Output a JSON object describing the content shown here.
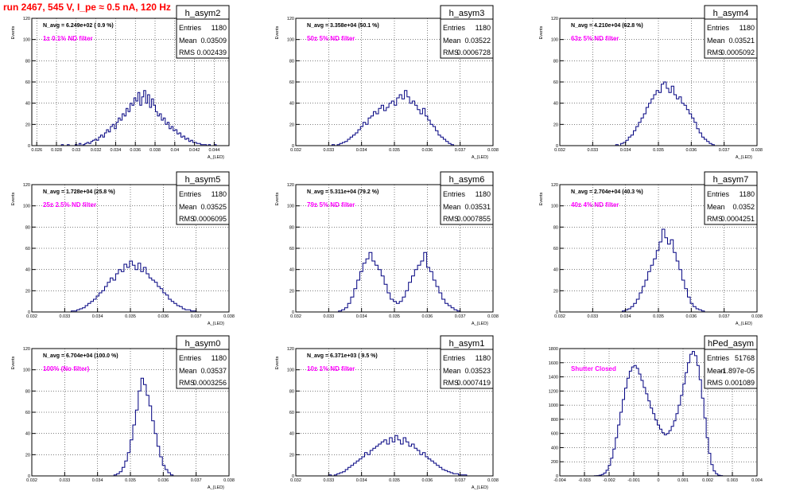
{
  "page_title": "run 2467,   545 V, I_pe ≈ 0.5 nA, 120 Hz",
  "stats_labels": {
    "entries": "Entries",
    "mean": "Mean",
    "rms": "RMS"
  },
  "colors": {
    "title": "#ff0000",
    "annotation": "#ff00ff",
    "histogram": "#000080",
    "frame": "#000000",
    "grid": "#000000",
    "background": "#ffffff"
  },
  "chart_data": [
    {
      "type": "histogram",
      "name": "h_asym2",
      "n_avg_text": "N_avg = 6.249e+02 ( 0.9 %)",
      "annotation": "1± 0.1% ND filter",
      "entries": "1180",
      "mean": "0.03509",
      "rms": "0.002439",
      "xlabel": "A_{LED}",
      "ylabel": "Events",
      "xlim": [
        0.0255,
        0.0455
      ],
      "ylim": [
        0,
        120
      ],
      "x_ticks": [
        0.026,
        0.028,
        0.03,
        0.032,
        0.034,
        0.036,
        0.038,
        0.04,
        0.042,
        0.044
      ],
      "x_tick_labels": [
        "0.026",
        "0.028",
        "0.03",
        "0.032",
        "0.034",
        "0.036",
        "0.038",
        "0.04",
        "0.042",
        "0.044"
      ],
      "y_ticks": [
        0,
        20,
        40,
        60,
        80,
        100,
        120
      ],
      "bin_edges": [
        0.0285,
        0.0442
      ],
      "counts": [
        1,
        0,
        0,
        1,
        0,
        0,
        0,
        1,
        0,
        2,
        0,
        1,
        2,
        3,
        2,
        4,
        5,
        6,
        5,
        8,
        10,
        8,
        12,
        15,
        13,
        18,
        20,
        16,
        22,
        26,
        24,
        30,
        28,
        35,
        32,
        40,
        38,
        45,
        42,
        50,
        38,
        46,
        52,
        40,
        48,
        36,
        44,
        38,
        32,
        28,
        30,
        24,
        26,
        20,
        22,
        16,
        18,
        14,
        15,
        11,
        12,
        8,
        9,
        6,
        7,
        4,
        5,
        3,
        3,
        2,
        2,
        1,
        1,
        1,
        0,
        1,
        0,
        0,
        1
      ]
    },
    {
      "type": "histogram",
      "name": "h_asym3",
      "n_avg_text": "N_avg = 3.358e+04 (50.1 %)",
      "annotation": "50± 5% ND filter",
      "entries": "1180",
      "mean": "0.03522",
      "rms": "0.0006728",
      "xlabel": "A_{LED}",
      "ylabel": "Events",
      "xlim": [
        0.032,
        0.038
      ],
      "ylim": [
        0,
        120
      ],
      "x_ticks": [
        0.032,
        0.033,
        0.034,
        0.035,
        0.036,
        0.037,
        0.038
      ],
      "x_tick_labels": [
        "0.032",
        "0.033",
        "0.034",
        "0.035",
        "0.036",
        "0.037",
        "0.038"
      ],
      "y_ticks": [
        0,
        20,
        40,
        60,
        80,
        100,
        120
      ],
      "bin_edges": [
        0.0331,
        0.0368
      ],
      "counts": [
        1,
        0,
        1,
        2,
        3,
        4,
        6,
        8,
        10,
        12,
        15,
        18,
        22,
        20,
        26,
        28,
        32,
        30,
        35,
        38,
        33,
        36,
        40,
        42,
        38,
        45,
        48,
        44,
        52,
        46,
        40,
        42,
        38,
        34,
        30,
        35,
        28,
        24,
        20,
        18,
        14,
        10,
        8,
        6,
        4,
        2,
        1
      ]
    },
    {
      "type": "histogram",
      "name": "h_asym4",
      "n_avg_text": "N_avg = 4.210e+04 (62.8 %)",
      "annotation": "63± 5% ND filter",
      "entries": "1180",
      "mean": "0.03521",
      "rms": "0.0005092",
      "xlabel": "A_{LED}",
      "ylabel": "Events",
      "xlim": [
        0.032,
        0.038
      ],
      "ylim": [
        0,
        120
      ],
      "x_ticks": [
        0.032,
        0.033,
        0.034,
        0.035,
        0.036,
        0.037,
        0.038
      ],
      "x_tick_labels": [
        "0.032",
        "0.033",
        "0.034",
        "0.035",
        "0.036",
        "0.037",
        "0.038"
      ],
      "y_ticks": [
        0,
        20,
        40,
        60,
        80,
        100,
        120
      ],
      "bin_edges": [
        0.0337,
        0.0367
      ],
      "counts": [
        1,
        0,
        2,
        3,
        5,
        8,
        10,
        14,
        18,
        22,
        26,
        30,
        36,
        40,
        44,
        48,
        52,
        50,
        58,
        60,
        54,
        50,
        56,
        48,
        44,
        46,
        40,
        38,
        34,
        30,
        26,
        22,
        16,
        12,
        8,
        6,
        4,
        2,
        1
      ]
    },
    {
      "type": "histogram",
      "name": "h_asym5",
      "n_avg_text": "N_avg = 1.728e+04 (25.8 %)",
      "annotation": "25± 2.5% ND filter",
      "entries": "1180",
      "mean": "0.03525",
      "rms": "0.0006095",
      "xlabel": "A_{LED}",
      "ylabel": "Events",
      "xlim": [
        0.032,
        0.038
      ],
      "ylim": [
        0,
        120
      ],
      "x_ticks": [
        0.032,
        0.033,
        0.034,
        0.035,
        0.036,
        0.037,
        0.038
      ],
      "x_tick_labels": [
        "0.032",
        "0.033",
        "0.034",
        "0.035",
        "0.036",
        "0.037",
        "0.038"
      ],
      "y_ticks": [
        0,
        20,
        40,
        60,
        80,
        100,
        120
      ],
      "bin_edges": [
        0.0332,
        0.037
      ],
      "counts": [
        1,
        1,
        2,
        3,
        4,
        6,
        8,
        10,
        12,
        15,
        18,
        20,
        24,
        28,
        32,
        30,
        36,
        40,
        38,
        45,
        42,
        48,
        44,
        40,
        46,
        38,
        42,
        36,
        32,
        30,
        28,
        24,
        22,
        18,
        16,
        12,
        10,
        8,
        6,
        5,
        3,
        2,
        2,
        1,
        1
      ]
    },
    {
      "type": "histogram",
      "name": "h_asym6",
      "n_avg_text": "N_avg = 5.311e+04 (79.2 %)",
      "annotation": "79± 5% ND filter",
      "entries": "1180",
      "mean": "0.03531",
      "rms": "0.0007855",
      "xlabel": "A_{LED}",
      "ylabel": "Events",
      "xlim": [
        0.032,
        0.038
      ],
      "ylim": [
        0,
        120
      ],
      "x_ticks": [
        0.032,
        0.033,
        0.034,
        0.035,
        0.036,
        0.037,
        0.038
      ],
      "x_tick_labels": [
        "0.032",
        "0.033",
        "0.034",
        "0.035",
        "0.036",
        "0.037",
        "0.038"
      ],
      "y_ticks": [
        0,
        20,
        40,
        60,
        80,
        100,
        120
      ],
      "bin_edges": [
        0.0333,
        0.037
      ],
      "counts": [
        1,
        2,
        4,
        8,
        14,
        22,
        30,
        38,
        46,
        50,
        56,
        48,
        44,
        40,
        34,
        26,
        18,
        12,
        10,
        8,
        10,
        14,
        20,
        28,
        34,
        40,
        44,
        48,
        56,
        42,
        38,
        30,
        24,
        18,
        12,
        8,
        6,
        4,
        2,
        1
      ]
    },
    {
      "type": "histogram",
      "name": "h_asym7",
      "n_avg_text": "N_avg = 2.704e+04 (40.3 %)",
      "annotation": "40± 4% ND filter",
      "entries": "1180",
      "mean": "0.0352",
      "rms": "0.0004251",
      "xlabel": "A_{LED}",
      "ylabel": "Events",
      "xlim": [
        0.032,
        0.038
      ],
      "ylim": [
        0,
        120
      ],
      "x_ticks": [
        0.032,
        0.033,
        0.034,
        0.035,
        0.036,
        0.037,
        0.038
      ],
      "x_tick_labels": [
        "0.032",
        "0.033",
        "0.034",
        "0.035",
        "0.036",
        "0.037",
        "0.038"
      ],
      "y_ticks": [
        0,
        20,
        40,
        60,
        80,
        100,
        120
      ],
      "bin_edges": [
        0.0339,
        0.0364
      ],
      "counts": [
        1,
        2,
        3,
        5,
        8,
        12,
        18,
        24,
        30,
        38,
        44,
        50,
        58,
        66,
        78,
        70,
        64,
        68,
        56,
        48,
        40,
        30,
        22,
        14,
        8,
        5,
        3,
        2,
        1
      ]
    },
    {
      "type": "histogram",
      "name": "h_asym0",
      "n_avg_text": "N_avg = 6.704e+04 (100.0 %)",
      "annotation": "100% (No filter)",
      "entries": "1180",
      "mean": "0.03537",
      "rms": "0.0003256",
      "xlabel": "A_{LED}",
      "ylabel": "Events",
      "xlim": [
        0.032,
        0.038
      ],
      "ylim": [
        0,
        120
      ],
      "x_ticks": [
        0.032,
        0.033,
        0.034,
        0.035,
        0.036,
        0.037,
        0.038
      ],
      "x_tick_labels": [
        "0.032",
        "0.033",
        "0.034",
        "0.035",
        "0.036",
        "0.037",
        "0.038"
      ],
      "y_ticks": [
        0,
        20,
        40,
        60,
        80,
        100,
        120
      ],
      "bin_edges": [
        0.0345,
        0.0363
      ],
      "counts": [
        1,
        2,
        4,
        8,
        14,
        22,
        34,
        48,
        62,
        80,
        92,
        86,
        76,
        66,
        52,
        40,
        28,
        18,
        10,
        6,
        3,
        1
      ]
    },
    {
      "type": "histogram",
      "name": "h_asym1",
      "n_avg_text": "N_avg = 6.371e+03 ( 9.5 %)",
      "annotation": "10± 1% ND filter",
      "entries": "1180",
      "mean": "0.03523",
      "rms": "0.0007419",
      "xlabel": "A_{LED}",
      "ylabel": "Events",
      "xlim": [
        0.032,
        0.038
      ],
      "ylim": [
        0,
        120
      ],
      "x_ticks": [
        0.032,
        0.033,
        0.034,
        0.035,
        0.036,
        0.037,
        0.038
      ],
      "x_tick_labels": [
        "0.032",
        "0.033",
        "0.034",
        "0.035",
        "0.036",
        "0.037",
        "0.038"
      ],
      "y_ticks": [
        0,
        20,
        40,
        60,
        80,
        100,
        120
      ],
      "bin_edges": [
        0.033,
        0.0372
      ],
      "counts": [
        1,
        0,
        1,
        2,
        3,
        4,
        6,
        8,
        10,
        12,
        14,
        16,
        18,
        22,
        20,
        24,
        26,
        28,
        30,
        32,
        34,
        30,
        36,
        32,
        38,
        34,
        30,
        36,
        32,
        28,
        30,
        26,
        24,
        20,
        22,
        18,
        16,
        14,
        12,
        10,
        8,
        6,
        5,
        4,
        3,
        2,
        2,
        1,
        1,
        1
      ]
    },
    {
      "type": "histogram",
      "name": "hPed_asym",
      "n_avg_text": "",
      "annotation": "Shutter Closed",
      "entries": "51768",
      "mean": "-1.897e-05",
      "rms": "0.001089",
      "xlabel": "",
      "ylabel": "",
      "xlim": [
        -0.004,
        0.004
      ],
      "ylim": [
        0,
        1800
      ],
      "x_ticks": [
        -0.004,
        -0.003,
        -0.002,
        -0.001,
        0,
        0.001,
        0.002,
        0.003,
        0.004
      ],
      "x_tick_labels": [
        "-0.004",
        "-0.003",
        "-0.002",
        "-0.001",
        "0",
        "0.001",
        "0.002",
        "0.003",
        "0.004"
      ],
      "y_ticks": [
        0,
        200,
        400,
        600,
        800,
        1000,
        1200,
        1400,
        1600,
        1800
      ],
      "bin_edges": [
        -0.0026,
        0.0026
      ],
      "counts": [
        2,
        5,
        10,
        20,
        40,
        80,
        150,
        250,
        380,
        540,
        720,
        900,
        1080,
        1240,
        1380,
        1480,
        1540,
        1560,
        1520,
        1440,
        1350,
        1250,
        1160,
        1060,
        960,
        880,
        790,
        720,
        660,
        610,
        580,
        600,
        640,
        700,
        780,
        880,
        1000,
        1140,
        1300,
        1460,
        1600,
        1720,
        1760,
        1700,
        1560,
        1360,
        1100,
        820,
        540,
        320,
        160,
        70,
        30,
        10,
        4
      ]
    }
  ]
}
